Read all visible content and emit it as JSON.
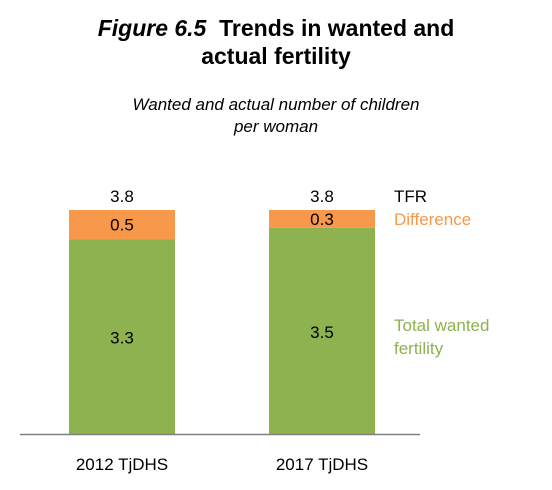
{
  "chart_data": {
    "type": "bar",
    "stacked": true,
    "title_prefix": "Figure 6.5",
    "title_line1": "Trends in wanted and",
    "title_line2": "actual fertility",
    "subtitle_line1": "Wanted and actual number of children",
    "subtitle_line2": "per woman",
    "categories": [
      "2012 TjDHS",
      "2017 TjDHS"
    ],
    "totals": [
      3.8,
      3.8
    ],
    "total_label": "TFR",
    "series": [
      {
        "name": "Total wanted fertility",
        "label_line1": "Total wanted",
        "label_line2": "fertility",
        "values": [
          3.3,
          3.5
        ],
        "value_labels": [
          "3.3",
          "3.5"
        ],
        "color": "#8DB24F"
      },
      {
        "name": "Difference",
        "values": [
          0.5,
          0.3
        ],
        "value_labels": [
          "0.5",
          "0.3"
        ],
        "color": "#F7984A"
      }
    ],
    "total_labels": [
      "3.8",
      "3.8"
    ],
    "ylim": [
      0,
      3.8
    ],
    "grid": false,
    "legend_placement": "right",
    "colors": {
      "wanted": "#8DB24F",
      "difference": "#F7984A",
      "difference_text": "#F7984A",
      "axis": "#808080"
    }
  }
}
